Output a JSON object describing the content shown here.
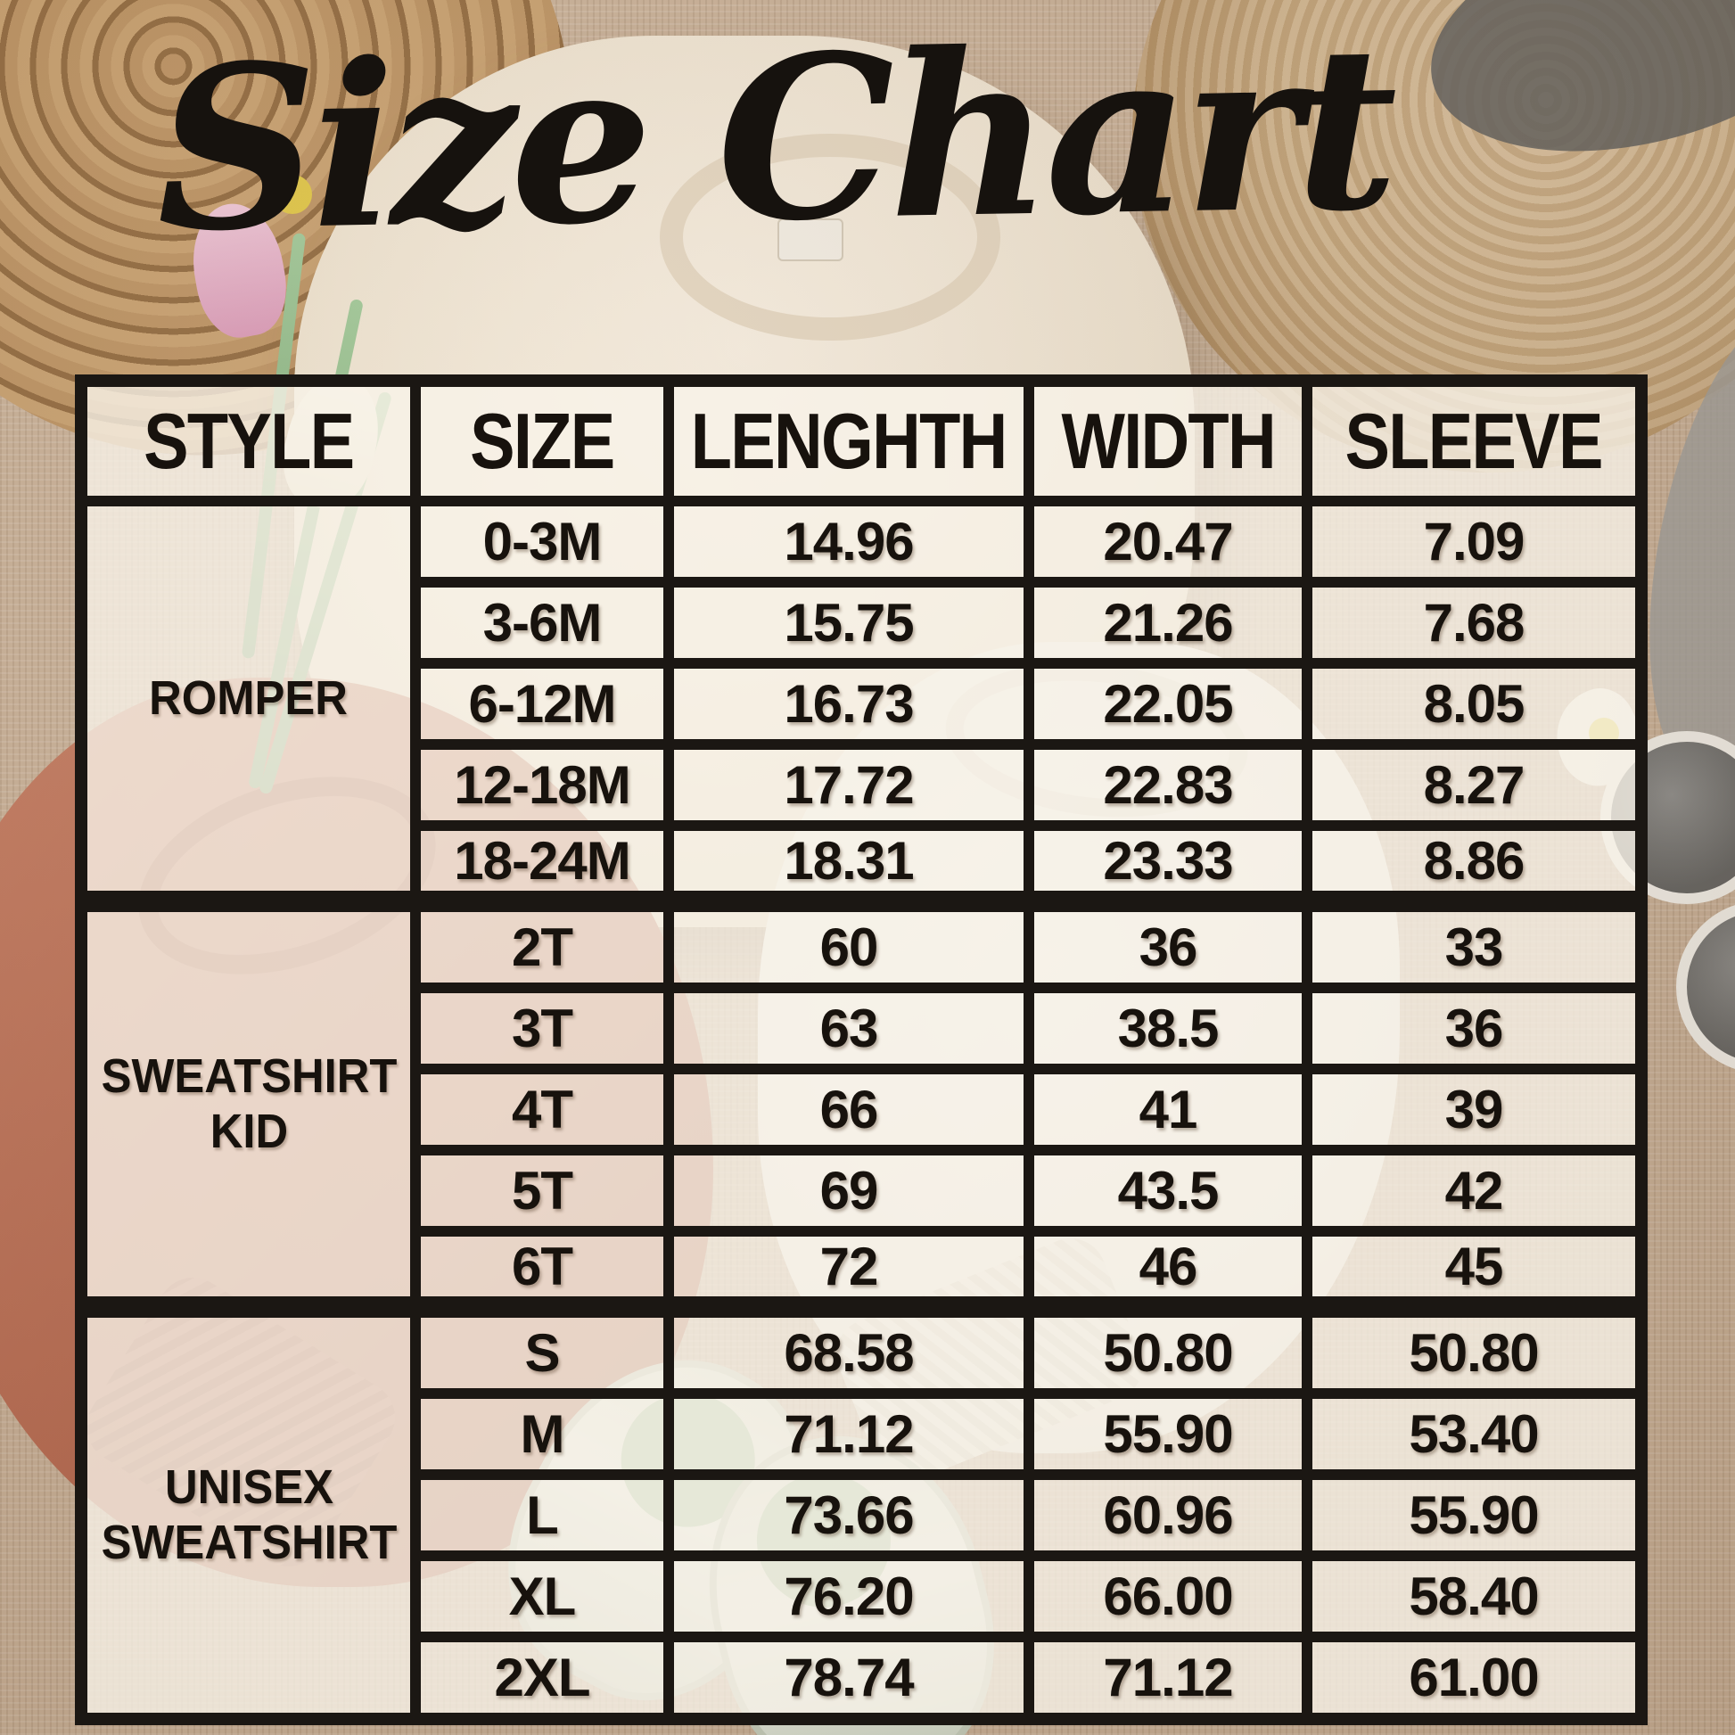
{
  "title": "Size Chart",
  "chart_data": {
    "type": "table",
    "title": "Size Chart",
    "columns": [
      "STYLE",
      "SIZE",
      "LENGHTH",
      "WIDTH",
      "SLEEVE"
    ],
    "groups": [
      {
        "style": "ROMPER",
        "rows": [
          [
            "0-3M",
            "14.96",
            "20.47",
            "7.09"
          ],
          [
            "3-6M",
            "15.75",
            "21.26",
            "7.68"
          ],
          [
            "6-12M",
            "16.73",
            "22.05",
            "8.05"
          ],
          [
            "12-18M",
            "17.72",
            "22.83",
            "8.27"
          ],
          [
            "18-24M",
            "18.31",
            "23.33",
            "8.86"
          ]
        ]
      },
      {
        "style": "SWEATSHIRT KID",
        "rows": [
          [
            "2T",
            "60",
            "36",
            "33"
          ],
          [
            "3T",
            "63",
            "38.5",
            "36"
          ],
          [
            "4T",
            "66",
            "41",
            "39"
          ],
          [
            "5T",
            "69",
            "43.5",
            "42"
          ],
          [
            "6T",
            "72",
            "46",
            "45"
          ]
        ]
      },
      {
        "style": "UNISEX SWEATSHIRT",
        "rows": [
          [
            "S",
            "68.58",
            "50.80",
            "50.80"
          ],
          [
            "M",
            "71.12",
            "55.90",
            "53.40"
          ],
          [
            "L",
            "73.66",
            "60.96",
            "55.90"
          ],
          [
            "XL",
            "76.20",
            "66.00",
            "58.40"
          ],
          [
            "2XL",
            "78.74",
            "71.12",
            "61.00"
          ]
        ]
      }
    ],
    "layout_hints": {
      "grid": "on",
      "group_separator": "thick-line",
      "cell_background": "semi-transparent cream over photo"
    }
  },
  "colors": {
    "table_line": "#1b1713",
    "cell_bg": "rgba(249,244,233,0.78)",
    "text": "#17120d",
    "burlap": "#c6ad93",
    "rust_sweatshirt": "#b4644a",
    "cream_sweatshirt": "#ece0cc",
    "white_sweatshirt": "#f2efe8",
    "straw_hat": "#cbab7e"
  },
  "decor_items": [
    "woven-mat",
    "straw-hat",
    "cream-sweatshirt",
    "rust-sweatshirt",
    "white-sweatshirt",
    "baby-shoes",
    "sunglasses",
    "calla-flower",
    "tulips"
  ]
}
